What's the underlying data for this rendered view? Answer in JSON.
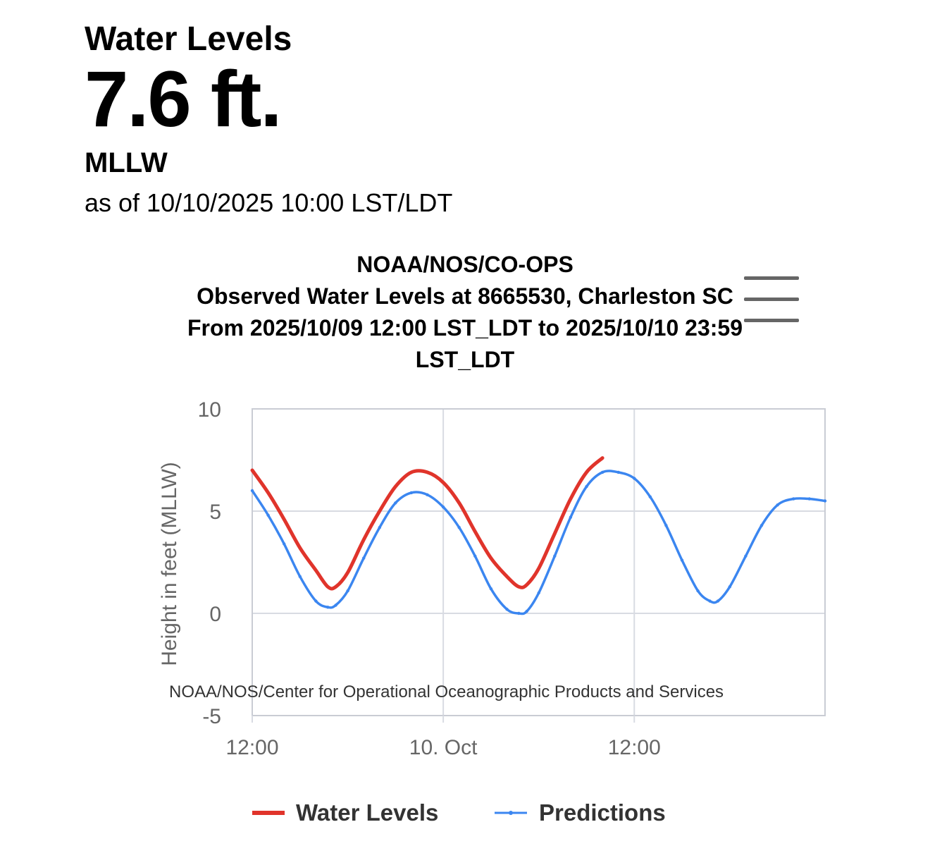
{
  "header": {
    "title": "Water Levels",
    "value": "7.6 ft.",
    "datum": "MLLW",
    "as_of": "as of 10/10/2025 10:00 LST/LDT"
  },
  "chart": {
    "title_lines": [
      "NOAA/NOS/CO-OPS",
      "Observed Water Levels at 8665530, Charleston SC",
      "From 2025/10/09 12:00 LST_LDT to 2025/10/10 23:59",
      "LST_LDT"
    ],
    "credit": "NOAA/NOS/Center for Operational Oceanographic Products and Services",
    "menu_icon": "hamburger-menu-icon",
    "colors": {
      "water_levels": "#e0342b",
      "predictions": "#3b86f0",
      "grid": "#d8dbe2"
    }
  },
  "chart_data": {
    "type": "line",
    "ylabel": "Height in feet (MLLW)",
    "ylim": [
      -5,
      10
    ],
    "yticks": [
      -5,
      0,
      5,
      10
    ],
    "xlim": [
      "2025/10/09 12:00",
      "2025/10/10 23:59"
    ],
    "xticks": [
      {
        "t": "2025/10/09 12:00",
        "label": "12:00"
      },
      {
        "t": "2025/10/10 00:00",
        "label": "10. Oct"
      },
      {
        "t": "2025/10/10 12:00",
        "label": "12:00"
      }
    ],
    "grid": true,
    "legend": "bottom",
    "series": [
      {
        "name": "Water Levels",
        "points": [
          [
            "2025/10/09 12:00",
            7.0
          ],
          [
            "2025/10/09 13:00",
            5.9
          ],
          [
            "2025/10/09 14:00",
            4.6
          ],
          [
            "2025/10/09 15:00",
            3.2
          ],
          [
            "2025/10/09 16:00",
            2.1
          ],
          [
            "2025/10/09 16:45",
            1.3
          ],
          [
            "2025/10/09 17:15",
            1.3
          ],
          [
            "2025/10/09 18:00",
            2.0
          ],
          [
            "2025/10/09 19:00",
            3.6
          ],
          [
            "2025/10/09 20:00",
            5.0
          ],
          [
            "2025/10/09 21:00",
            6.2
          ],
          [
            "2025/10/09 22:00",
            6.9
          ],
          [
            "2025/10/09 23:00",
            6.9
          ],
          [
            "2025/10/10 00:00",
            6.4
          ],
          [
            "2025/10/10 01:00",
            5.4
          ],
          [
            "2025/10/10 02:00",
            4.0
          ],
          [
            "2025/10/10 03:00",
            2.7
          ],
          [
            "2025/10/10 04:00",
            1.8
          ],
          [
            "2025/10/10 04:45",
            1.3
          ],
          [
            "2025/10/10 05:15",
            1.4
          ],
          [
            "2025/10/10 06:00",
            2.2
          ],
          [
            "2025/10/10 07:00",
            3.9
          ],
          [
            "2025/10/10 08:00",
            5.6
          ],
          [
            "2025/10/10 09:00",
            6.9
          ],
          [
            "2025/10/10 10:00",
            7.6
          ]
        ]
      },
      {
        "name": "Predictions",
        "points": [
          [
            "2025/10/09 12:00",
            6.0
          ],
          [
            "2025/10/09 13:00",
            4.8
          ],
          [
            "2025/10/09 14:00",
            3.4
          ],
          [
            "2025/10/09 15:00",
            1.8
          ],
          [
            "2025/10/09 16:00",
            0.6
          ],
          [
            "2025/10/09 16:45",
            0.3
          ],
          [
            "2025/10/09 17:15",
            0.4
          ],
          [
            "2025/10/09 18:00",
            1.1
          ],
          [
            "2025/10/09 19:00",
            2.7
          ],
          [
            "2025/10/09 20:00",
            4.2
          ],
          [
            "2025/10/09 21:00",
            5.4
          ],
          [
            "2025/10/09 22:00",
            5.9
          ],
          [
            "2025/10/09 23:00",
            5.8
          ],
          [
            "2025/10/10 00:00",
            5.2
          ],
          [
            "2025/10/10 01:00",
            4.2
          ],
          [
            "2025/10/10 02:00",
            2.8
          ],
          [
            "2025/10/10 03:00",
            1.2
          ],
          [
            "2025/10/10 04:00",
            0.2
          ],
          [
            "2025/10/10 04:45",
            0.0
          ],
          [
            "2025/10/10 05:15",
            0.1
          ],
          [
            "2025/10/10 06:00",
            1.0
          ],
          [
            "2025/10/10 07:00",
            2.8
          ],
          [
            "2025/10/10 08:00",
            4.7
          ],
          [
            "2025/10/10 09:00",
            6.2
          ],
          [
            "2025/10/10 10:00",
            6.9
          ],
          [
            "2025/10/10 11:00",
            6.9
          ],
          [
            "2025/10/10 12:00",
            6.6
          ],
          [
            "2025/10/10 13:00",
            5.7
          ],
          [
            "2025/10/10 14:00",
            4.3
          ],
          [
            "2025/10/10 15:00",
            2.6
          ],
          [
            "2025/10/10 16:00",
            1.1
          ],
          [
            "2025/10/10 16:45",
            0.6
          ],
          [
            "2025/10/10 17:15",
            0.6
          ],
          [
            "2025/10/10 18:00",
            1.3
          ],
          [
            "2025/10/10 19:00",
            2.8
          ],
          [
            "2025/10/10 20:00",
            4.3
          ],
          [
            "2025/10/10 21:00",
            5.3
          ],
          [
            "2025/10/10 22:00",
            5.6
          ],
          [
            "2025/10/10 23:00",
            5.6
          ],
          [
            "2025/10/10 23:59",
            5.5
          ]
        ]
      }
    ]
  }
}
